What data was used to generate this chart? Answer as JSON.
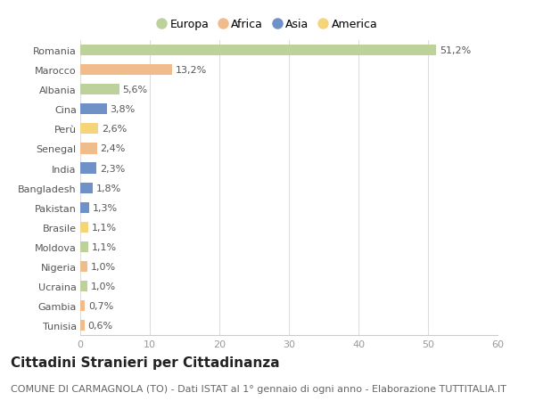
{
  "categories": [
    "Tunisia",
    "Gambia",
    "Ucraina",
    "Nigeria",
    "Moldova",
    "Brasile",
    "Pakistan",
    "Bangladesh",
    "India",
    "Senegal",
    "Perù",
    "Cina",
    "Albania",
    "Marocco",
    "Romania"
  ],
  "values": [
    0.6,
    0.7,
    1.0,
    1.0,
    1.1,
    1.1,
    1.3,
    1.8,
    2.3,
    2.4,
    2.6,
    3.8,
    5.6,
    13.2,
    51.2
  ],
  "labels": [
    "0,6%",
    "0,7%",
    "1,0%",
    "1,0%",
    "1,1%",
    "1,1%",
    "1,3%",
    "1,8%",
    "2,3%",
    "2,4%",
    "2,6%",
    "3,8%",
    "5,6%",
    "13,2%",
    "51,2%"
  ],
  "colors": [
    "#f0bc8c",
    "#f0bc8c",
    "#bdd19a",
    "#f0bc8c",
    "#bdd19a",
    "#f5d47a",
    "#7090c8",
    "#7090c8",
    "#7090c8",
    "#f0bc8c",
    "#f5d47a",
    "#7090c8",
    "#bdd19a",
    "#f0bc8c",
    "#bdd19a"
  ],
  "legend_labels": [
    "Europa",
    "Africa",
    "Asia",
    "America"
  ],
  "legend_colors": [
    "#bdd19a",
    "#f0bc8c",
    "#7090c8",
    "#f5d47a"
  ],
  "title": "Cittadini Stranieri per Cittadinanza",
  "subtitle": "COMUNE DI CARMAGNOLA (TO) - Dati ISTAT al 1° gennaio di ogni anno - Elaborazione TUTTITALIA.IT",
  "xlim": [
    0,
    60
  ],
  "xticks": [
    0,
    10,
    20,
    30,
    40,
    50,
    60
  ],
  "bg_color": "#ffffff",
  "bar_height": 0.55,
  "title_fontsize": 11,
  "subtitle_fontsize": 8,
  "label_fontsize": 8,
  "tick_fontsize": 8,
  "legend_fontsize": 9
}
